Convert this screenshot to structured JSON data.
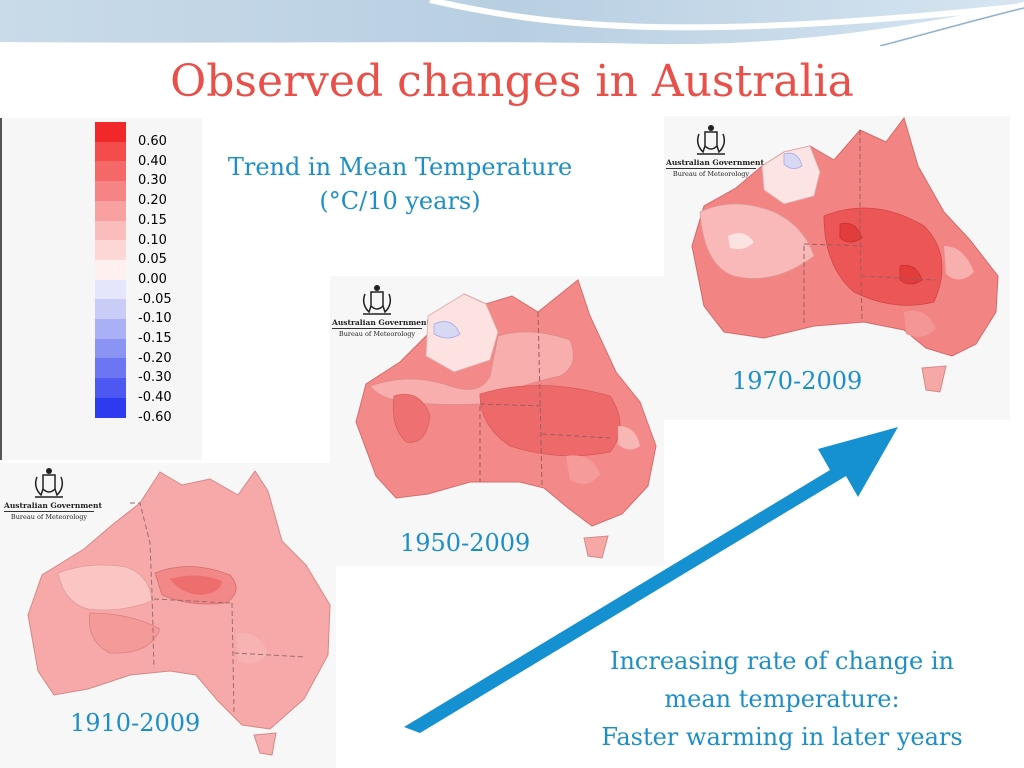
{
  "slide": {
    "title": "Observed changes in Australia",
    "trend_title": {
      "line1": "Trend in Mean Temperature",
      "line2": "(°C/10 years)"
    },
    "logo": {
      "line1": "Australian Government",
      "line2": "Bureau of Meteorology"
    },
    "maps": [
      {
        "period": "1910-2009"
      },
      {
        "period": "1950-2009"
      },
      {
        "period": "1970-2009"
      }
    ],
    "caption": {
      "line1": "Increasing rate of change in",
      "line2": "mean temperature:",
      "line3": "Faster warming in later years"
    },
    "colors": {
      "title": "#e8504a",
      "text_blue": "#1d8fc6",
      "arrow": "#1591d2"
    }
  },
  "legend": {
    "entries": [
      {
        "label": "0.60",
        "color": "#f0282a"
      },
      {
        "label": "0.40",
        "color": "#f24c4b"
      },
      {
        "label": "0.30",
        "color": "#f46868"
      },
      {
        "label": "0.20",
        "color": "#f78484"
      },
      {
        "label": "0.15",
        "color": "#f9a0a0"
      },
      {
        "label": "0.10",
        "color": "#fbbcbc"
      },
      {
        "label": "0.05",
        "color": "#fdd6d6"
      },
      {
        "label": "0.00",
        "color": "#fff0f0"
      },
      {
        "label": "-0.05",
        "color": "#e4e6fb"
      },
      {
        "label": "-0.10",
        "color": "#c8ccf7"
      },
      {
        "label": "-0.15",
        "color": "#aab0f5"
      },
      {
        "label": "-0.20",
        "color": "#8c94f3"
      },
      {
        "label": "-0.30",
        "color": "#6c76f2"
      },
      {
        "label": "-0.40",
        "color": "#4c58f1"
      },
      {
        "label": "-0.60",
        "color": "#2c3af0"
      }
    ]
  }
}
